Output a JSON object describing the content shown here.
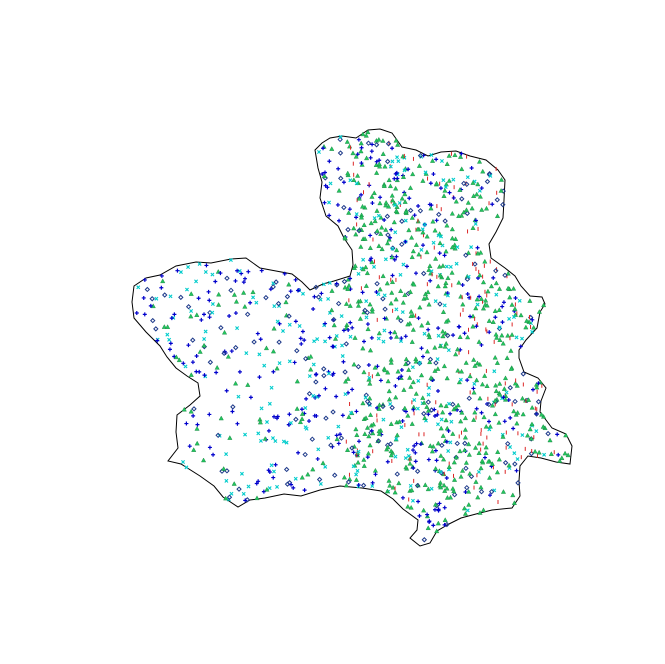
{
  "map": {
    "region_outline": [
      [
        315,
        150
      ],
      [
        322,
        143
      ],
      [
        330,
        138
      ],
      [
        342,
        136
      ],
      [
        356,
        138
      ],
      [
        368,
        130
      ],
      [
        380,
        129
      ],
      [
        392,
        133
      ],
      [
        402,
        147
      ],
      [
        416,
        150
      ],
      [
        428,
        156
      ],
      [
        441,
        152
      ],
      [
        456,
        151
      ],
      [
        470,
        156
      ],
      [
        486,
        160
      ],
      [
        498,
        170
      ],
      [
        505,
        180
      ],
      [
        504,
        200
      ],
      [
        503,
        218
      ],
      [
        496,
        232
      ],
      [
        489,
        244
      ],
      [
        491,
        258
      ],
      [
        505,
        268
      ],
      [
        515,
        276
      ],
      [
        521,
        286
      ],
      [
        530,
        296
      ],
      [
        542,
        297
      ],
      [
        545,
        304
      ],
      [
        540,
        312
      ],
      [
        537,
        328
      ],
      [
        526,
        340
      ],
      [
        519,
        350
      ],
      [
        519,
        358
      ],
      [
        524,
        372
      ],
      [
        538,
        378
      ],
      [
        546,
        388
      ],
      [
        541,
        401
      ],
      [
        540,
        412
      ],
      [
        552,
        428
      ],
      [
        566,
        434
      ],
      [
        572,
        446
      ],
      [
        570,
        464
      ],
      [
        556,
        462
      ],
      [
        541,
        458
      ],
      [
        528,
        456
      ],
      [
        520,
        466
      ],
      [
        519,
        481
      ],
      [
        520,
        496
      ],
      [
        512,
        508
      ],
      [
        492,
        510
      ],
      [
        476,
        514
      ],
      [
        461,
        518
      ],
      [
        449,
        524
      ],
      [
        437,
        531
      ],
      [
        430,
        543
      ],
      [
        420,
        546
      ],
      [
        410,
        538
      ],
      [
        417,
        530
      ],
      [
        418,
        520
      ],
      [
        403,
        509
      ],
      [
        393,
        499
      ],
      [
        381,
        491
      ],
      [
        362,
        488
      ],
      [
        340,
        486
      ],
      [
        320,
        490
      ],
      [
        301,
        496
      ],
      [
        284,
        494
      ],
      [
        265,
        498
      ],
      [
        250,
        500
      ],
      [
        238,
        507
      ],
      [
        223,
        497
      ],
      [
        214,
        486
      ],
      [
        200,
        476
      ],
      [
        181,
        464
      ],
      [
        168,
        461
      ],
      [
        178,
        448
      ],
      [
        176,
        432
      ],
      [
        177,
        415
      ],
      [
        190,
        405
      ],
      [
        200,
        396
      ],
      [
        198,
        383
      ],
      [
        187,
        376
      ],
      [
        176,
        368
      ],
      [
        167,
        357
      ],
      [
        160,
        346
      ],
      [
        146,
        332
      ],
      [
        134,
        318
      ],
      [
        132,
        302
      ],
      [
        134,
        286
      ],
      [
        146,
        278
      ],
      [
        160,
        275
      ],
      [
        176,
        266
      ],
      [
        196,
        262
      ],
      [
        211,
        263
      ],
      [
        231,
        259
      ],
      [
        246,
        258
      ],
      [
        260,
        268
      ],
      [
        276,
        271
      ],
      [
        292,
        274
      ],
      [
        302,
        282
      ],
      [
        310,
        290
      ],
      [
        323,
        284
      ],
      [
        334,
        281
      ],
      [
        350,
        276
      ],
      [
        353,
        265
      ],
      [
        352,
        250
      ],
      [
        344,
        238
      ],
      [
        338,
        226
      ],
      [
        326,
        216
      ],
      [
        320,
        198
      ],
      [
        322,
        182
      ],
      [
        318,
        168
      ]
    ],
    "series": [
      {
        "marker": "triangle",
        "color": "#22c55e"
      },
      {
        "marker": "plus",
        "color": "#0000cc"
      },
      {
        "marker": "cross",
        "color": "#00cccc"
      },
      {
        "marker": "diamond",
        "color": "#1e3a8a"
      },
      {
        "marker": "tick",
        "color": "#dc2626"
      }
    ]
  }
}
